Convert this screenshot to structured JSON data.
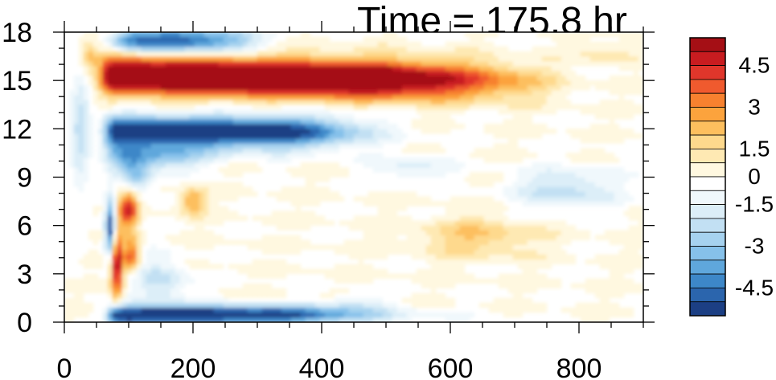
{
  "chart_data": {
    "type": "heatmap",
    "title": "Time = 175.8 hr",
    "xlabel": "",
    "ylabel": "",
    "xlim": [
      0,
      900
    ],
    "ylim": [
      0,
      18
    ],
    "x_ticks": [
      "0",
      "200",
      "400",
      "600",
      "800"
    ],
    "y_ticks": [
      "0",
      "3",
      "6",
      "9",
      "12",
      "15",
      "18"
    ],
    "colorbar": {
      "levels": [
        "4.5",
        "3",
        "1.5",
        "0",
        "-1.5",
        "-3",
        "-4.5"
      ],
      "colors": [
        "#a50f15",
        "#c81c20",
        "#e0362b",
        "#f05a2e",
        "#f7812f",
        "#fca33d",
        "#fdbf5e",
        "#fed98d",
        "#fee9b3",
        "#fff8e0",
        "#ffffff",
        "#f0f8fc",
        "#dceef8",
        "#c2e0f3",
        "#a6d2ef",
        "#86c1ea",
        "#5fa7dc",
        "#3d87c8",
        "#2b65ad",
        "#1c3f84"
      ]
    },
    "features": [
      {
        "name": "upper warm band",
        "x": [
          60,
          780
        ],
        "y": [
          13,
          16.5
        ],
        "peak": 5.5
      },
      {
        "name": "cold band",
        "x": [
          60,
          450
        ],
        "y": [
          10,
          13
        ],
        "peak": -5.5
      },
      {
        "name": "top cold band",
        "x": [
          80,
          300
        ],
        "y": [
          16.5,
          18
        ],
        "peak": -4.5
      },
      {
        "name": "bottom cold band",
        "x": [
          60,
          480
        ],
        "y": [
          0,
          1.5
        ],
        "peak": -5.5
      },
      {
        "name": "lower warm patch",
        "x": [
          70,
          130
        ],
        "y": [
          1,
          9
        ],
        "peak": 4.5
      }
    ]
  }
}
